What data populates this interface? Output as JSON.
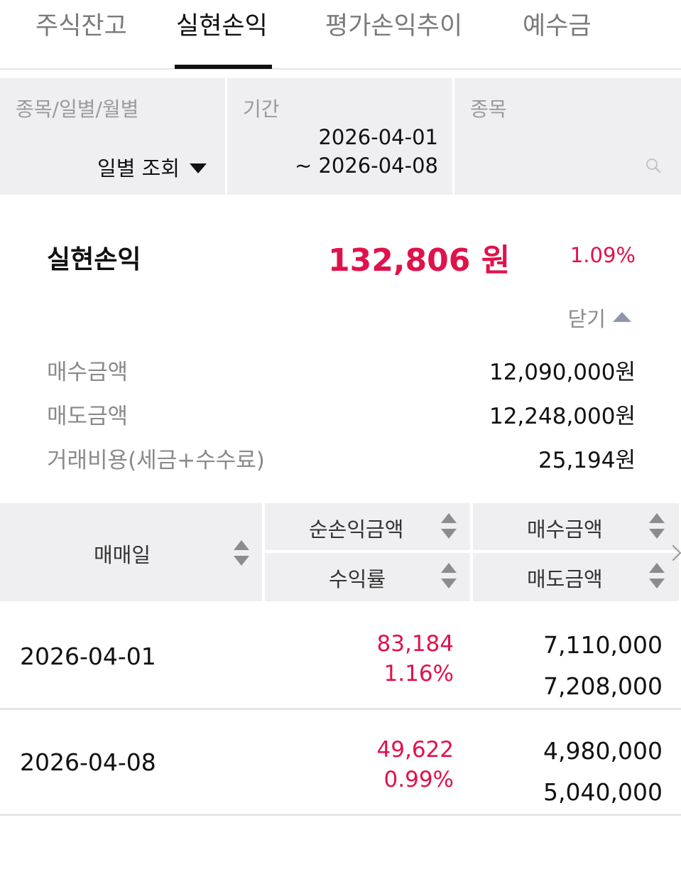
{
  "tabs": [
    {
      "label": "주식잔고",
      "active": false
    },
    {
      "label": "실현손익",
      "active": true
    },
    {
      "label": "평가손익추이",
      "active": false
    },
    {
      "label": "예수금",
      "active": false
    }
  ],
  "filters": {
    "view_type": {
      "label": "종목/일별/월별",
      "value": "일별 조회"
    },
    "period": {
      "label": "기간",
      "start": "2026-04-01",
      "end": "~ 2026-04-08"
    },
    "stock": {
      "label": "종목",
      "placeholder": ""
    }
  },
  "summary": {
    "title": "실현손익",
    "amount": "132,806 원",
    "rate": "1.09%",
    "toggle_label": "닫기",
    "details": [
      {
        "label": "매수금액",
        "value": "12,090,000원"
      },
      {
        "label": "매도금액",
        "value": "12,248,000원"
      },
      {
        "label": "거래비용(세금+수수료)",
        "value": "25,194원"
      }
    ]
  },
  "table": {
    "headers": {
      "date": "매매일",
      "net_profit": "순손익금액",
      "return_rate": "수익률",
      "buy_amount": "매수금액",
      "sell_amount": "매도금액"
    },
    "rows": [
      {
        "date": "2026-04-01",
        "net_profit": "83,184",
        "return_rate": "1.16%",
        "buy_amount": "7,110,000",
        "sell_amount": "7,208,000"
      },
      {
        "date": "2026-04-08",
        "net_profit": "49,622",
        "return_rate": "0.99%",
        "buy_amount": "4,980,000",
        "sell_amount": "5,040,000"
      }
    ]
  },
  "colors": {
    "profit": "#e0124b",
    "header_bg": "#efeff1",
    "active_tab": "#111111",
    "inactive_tab": "#7a7a7a"
  }
}
